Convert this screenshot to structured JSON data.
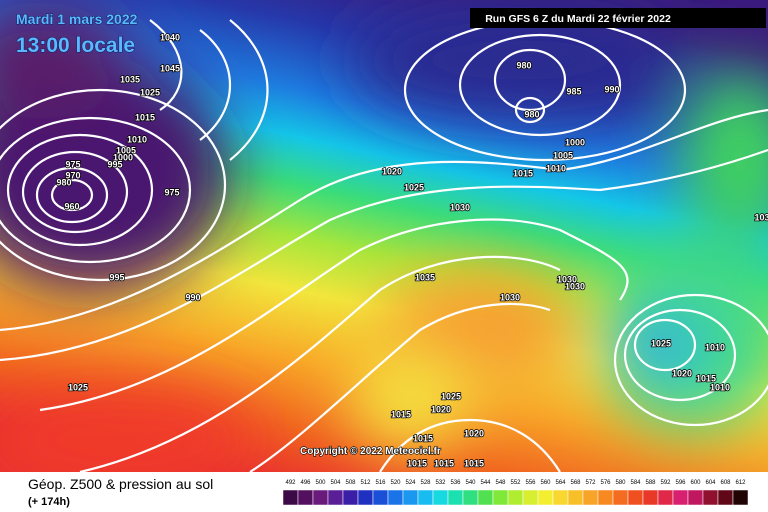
{
  "header": {
    "date": "Mardi 1 mars 2022",
    "time": "13:00 locale",
    "run": "Run GFS 6 Z du Mardi 22 février 2022"
  },
  "map": {
    "copyright": "Copyright © 2022 Meteociel.fr",
    "isobar_labels": [
      "1040",
      "1045",
      "1035",
      "1025",
      "1015",
      "1010",
      "1005",
      "1000",
      "995",
      "975",
      "970",
      "980",
      "960",
      "975",
      "995",
      "990",
      "1025",
      "980",
      "985",
      "990",
      "980",
      "1000",
      "1005",
      "1010",
      "1015",
      "1020",
      "1025",
      "1030",
      "1035",
      "1030",
      "1030",
      "1030",
      "1025",
      "1010",
      "1020",
      "1015",
      "1010",
      "1025",
      "1020",
      "1015",
      "1015",
      "1020",
      "1015",
      "1015",
      "1015",
      "103"
    ]
  },
  "legend": {
    "title": "Géop. Z500 & pression au sol",
    "lead": "(+ 174h)",
    "scale_labels": [
      492,
      496,
      500,
      504,
      508,
      512,
      516,
      520,
      524,
      528,
      532,
      536,
      540,
      544,
      548,
      552,
      556,
      560,
      564,
      568,
      572,
      576,
      580,
      584,
      588,
      592,
      596,
      600,
      604,
      608,
      612
    ],
    "scale_colors": [
      "#3c0a46",
      "#52105e",
      "#6a1a7a",
      "#5a1e96",
      "#3a1ea8",
      "#2030c0",
      "#1a50d8",
      "#1a74e8",
      "#1a98f0",
      "#18bcf0",
      "#18d8e0",
      "#1ce0b0",
      "#30e080",
      "#50e050",
      "#80e838",
      "#b0ec30",
      "#d8ee30",
      "#f4ee30",
      "#f8d830",
      "#f8c028",
      "#f8a428",
      "#f88820",
      "#f46c20",
      "#f05020",
      "#e83828",
      "#e02848",
      "#d82070",
      "#c01860",
      "#901030",
      "#600818",
      "#200404"
    ]
  }
}
